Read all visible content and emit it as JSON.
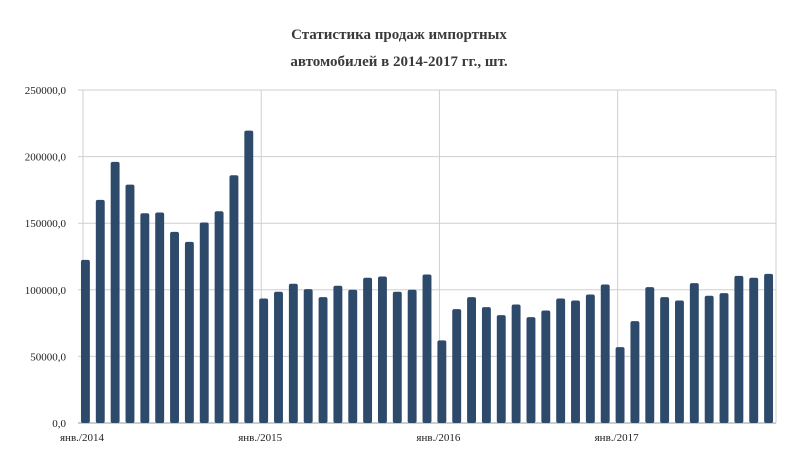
{
  "chart_data": {
    "type": "bar",
    "title_lines": [
      "Статистика продаж импортных",
      "автомобилей в 2014-2017 гг., шт."
    ],
    "xlabel": "",
    "ylabel": "",
    "ylim": [
      0,
      250000
    ],
    "y_ticks": [
      "0,0",
      "50000,0",
      "100000,0",
      "150000,0",
      "200000,0",
      "250000,0"
    ],
    "x_tick_labels": [
      "янв./2014",
      "янв./2015",
      "янв./2016",
      "янв./2017"
    ],
    "x_tick_indices": [
      0,
      12,
      24,
      36
    ],
    "grid": true,
    "bar_color": "#2e4a6b",
    "values": [
      122500,
      167500,
      196000,
      179000,
      157500,
      158000,
      143500,
      136000,
      150500,
      159000,
      186000,
      219500,
      93500,
      98500,
      104500,
      100500,
      94500,
      103000,
      100000,
      109000,
      110000,
      98500,
      100000,
      111500,
      62000,
      85500,
      94500,
      87000,
      81000,
      89000,
      79500,
      84500,
      93500,
      92000,
      96500,
      104000,
      57000,
      76500,
      102000,
      94500,
      92000,
      105000,
      95500,
      97500,
      110500,
      109000,
      112000
    ]
  }
}
